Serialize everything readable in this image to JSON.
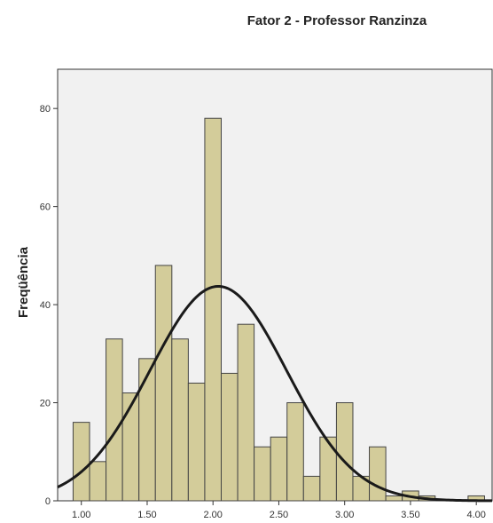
{
  "chart_data": {
    "type": "bar",
    "title": "Fator 2 - Professor Ranzinza",
    "ylabel": "Freqüência",
    "xlabel": "",
    "bin_width": 0.125,
    "bins_start": [
      0.9375,
      1.0625,
      1.1875,
      1.3125,
      1.4375,
      1.5625,
      1.6875,
      1.8125,
      1.9375,
      2.0625,
      2.1875,
      2.3125,
      2.4375,
      2.5625,
      2.6875,
      2.8125,
      2.9375,
      3.0625,
      3.1875,
      3.3125,
      3.4375,
      3.5625,
      3.6875,
      3.8125,
      3.9375
    ],
    "values": [
      16,
      8,
      33,
      22,
      29,
      48,
      33,
      24,
      78,
      26,
      36,
      11,
      13,
      20,
      5,
      13,
      20,
      5,
      11,
      1,
      2,
      1,
      0,
      0,
      1
    ],
    "normal_curve": {
      "mean": 2.04,
      "std": 0.52,
      "n": 456
    },
    "xlim": [
      0.82,
      4.12
    ],
    "ylim": [
      0,
      88
    ],
    "x_ticks": [
      "1.00",
      "1.50",
      "2.00",
      "2.50",
      "3.00",
      "3.50",
      "4.00"
    ],
    "y_ticks": [
      "0",
      "20",
      "40",
      "60",
      "80"
    ],
    "bar_color": "#d3cc9a",
    "plot_background": "#f1f1f1"
  }
}
